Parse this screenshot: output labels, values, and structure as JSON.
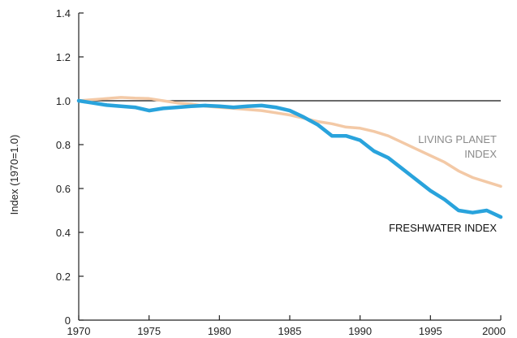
{
  "chart_data": {
    "type": "line",
    "title": "",
    "xlabel": "",
    "ylabel": "Index (1970=1.0)",
    "xlim": [
      1970,
      2000
    ],
    "ylim": [
      0,
      1.4
    ],
    "x_ticks": [
      1970,
      1975,
      1980,
      1985,
      1990,
      1995,
      2000
    ],
    "y_ticks": [
      "0",
      "0.2",
      "0.4",
      "0.6",
      "0.8",
      "1.0",
      "1.2",
      "1.4"
    ],
    "reference_line": {
      "y": 1.0,
      "color": "#111111"
    },
    "series": [
      {
        "name": "LIVING PLANET INDEX",
        "label_lines": [
          "LIVING PLANET",
          "INDEX"
        ],
        "color": "#f3c9a6",
        "x": [
          1970,
          1971,
          1972,
          1973,
          1974,
          1975,
          1976,
          1977,
          1978,
          1979,
          1980,
          1981,
          1982,
          1983,
          1984,
          1985,
          1986,
          1987,
          1988,
          1989,
          1990,
          1991,
          1992,
          1993,
          1994,
          1995,
          1996,
          1997,
          1998,
          1999,
          2000
        ],
        "y": [
          1.0,
          1.005,
          1.01,
          1.015,
          1.012,
          1.01,
          1.0,
          0.99,
          0.985,
          0.975,
          0.97,
          0.965,
          0.96,
          0.955,
          0.945,
          0.935,
          0.92,
          0.905,
          0.895,
          0.88,
          0.875,
          0.86,
          0.84,
          0.81,
          0.78,
          0.75,
          0.72,
          0.68,
          0.65,
          0.63,
          0.61
        ]
      },
      {
        "name": "FRESHWATER INDEX",
        "label_lines": [
          "FRESHWATER INDEX"
        ],
        "color": "#29a3dc",
        "x": [
          1970,
          1971,
          1972,
          1973,
          1974,
          1975,
          1976,
          1977,
          1978,
          1979,
          1980,
          1981,
          1982,
          1983,
          1984,
          1985,
          1986,
          1987,
          1988,
          1989,
          1990,
          1991,
          1992,
          1993,
          1994,
          1995,
          1996,
          1997,
          1998,
          1999,
          2000
        ],
        "y": [
          1.0,
          0.99,
          0.98,
          0.975,
          0.97,
          0.955,
          0.965,
          0.97,
          0.975,
          0.978,
          0.975,
          0.97,
          0.975,
          0.978,
          0.97,
          0.955,
          0.925,
          0.89,
          0.84,
          0.84,
          0.82,
          0.77,
          0.74,
          0.69,
          0.64,
          0.59,
          0.55,
          0.5,
          0.49,
          0.5,
          0.47
        ]
      }
    ],
    "grid": false,
    "legend": "none"
  }
}
